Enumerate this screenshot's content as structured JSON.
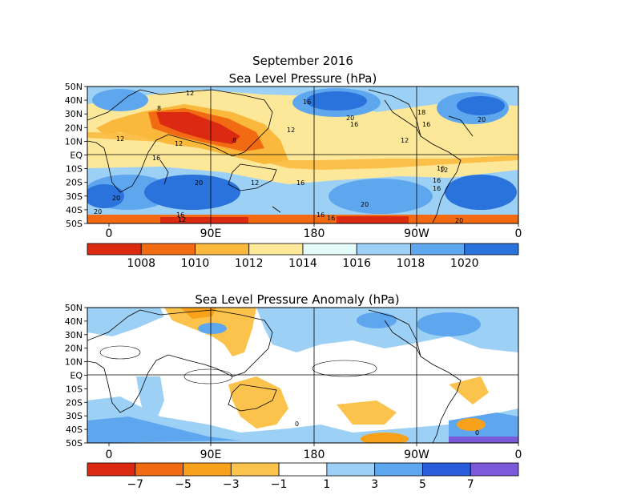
{
  "chart_data": [
    {
      "type": "heatmap",
      "title": "September 2016",
      "subtitle": "Sea Level Pressure (hPa)",
      "xlabel": "",
      "ylabel": "",
      "x_ticks": [
        "0",
        "90E",
        "180",
        "90W",
        "0"
      ],
      "y_ticks": [
        "50N",
        "40N",
        "30N",
        "20N",
        "10N",
        "EQ",
        "10S",
        "20S",
        "30S",
        "40S",
        "50S"
      ],
      "colorbar": {
        "colors": [
          "#dc2a12",
          "#f26a12",
          "#fab93c",
          "#fde89a",
          "#e3fbf9",
          "#9dd0f5",
          "#5ea6ee",
          "#2a72dc"
        ],
        "labels": [
          "1008",
          "1010",
          "1012",
          "1014",
          "1016",
          "1018",
          "1020"
        ]
      },
      "contour_labels": [
        "12",
        "8",
        "12",
        "12",
        "8",
        "12",
        "12",
        "12",
        "16",
        "16",
        "16",
        "16",
        "16",
        "16",
        "20",
        "20",
        "20",
        "20",
        "20",
        "20",
        "16",
        "16",
        "12",
        "16",
        "12",
        "16",
        "18",
        "16",
        "20"
      ]
    },
    {
      "type": "heatmap",
      "title": "Sea Level Pressure Anomaly (hPa)",
      "xlabel": "",
      "ylabel": "",
      "x_ticks": [
        "0",
        "90E",
        "180",
        "90W",
        "0"
      ],
      "y_ticks": [
        "50N",
        "40N",
        "30N",
        "20N",
        "10N",
        "EQ",
        "10S",
        "20S",
        "30S",
        "40S",
        "50S"
      ],
      "colorbar": {
        "colors": [
          "#dc2a12",
          "#f26a12",
          "#f8a21c",
          "#fbc24c",
          "#ffffff",
          "#9dd0f5",
          "#5ea6ee",
          "#2a5ddc",
          "#7a5ad8"
        ],
        "labels": [
          "−7",
          "−5",
          "−3",
          "−1",
          "1",
          "3",
          "5",
          "7"
        ]
      },
      "contour_labels": [
        "0",
        "0"
      ]
    }
  ]
}
